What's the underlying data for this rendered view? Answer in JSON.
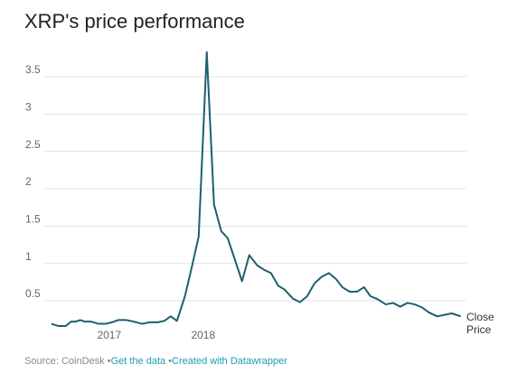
{
  "chart_data": {
    "type": "line",
    "title": "XRP's price performance",
    "x": [
      2016.385,
      2016.462,
      2016.538,
      2016.596,
      2016.644,
      2016.692,
      2016.74,
      2016.808,
      2016.885,
      2016.962,
      2017.029,
      2017.096,
      2017.183,
      2017.26,
      2017.346,
      2017.433,
      2017.519,
      2017.587,
      2017.654,
      2017.721,
      2017.808,
      2017.875,
      2017.952,
      2018.038,
      2018.115,
      2018.192,
      2018.26,
      2018.337,
      2018.413,
      2018.49,
      2018.577,
      2018.654,
      2018.721,
      2018.798,
      2018.865,
      2018.952,
      2019.029,
      2019.106,
      2019.183,
      2019.26,
      2019.337,
      2019.413,
      2019.481,
      2019.558,
      2019.635,
      2019.712,
      2019.779,
      2019.856,
      2019.942,
      2020.019,
      2020.096,
      2020.173,
      2020.25,
      2020.327,
      2020.404,
      2020.49,
      2020.567,
      2020.644,
      2020.74
    ],
    "series": [
      {
        "name": "Close Price",
        "color": "#1f5f6f",
        "values": [
          0.19,
          0.16,
          0.16,
          0.22,
          0.22,
          0.24,
          0.22,
          0.22,
          0.19,
          0.19,
          0.21,
          0.24,
          0.24,
          0.22,
          0.19,
          0.21,
          0.21,
          0.23,
          0.29,
          0.23,
          0.57,
          0.93,
          1.36,
          3.83,
          1.79,
          1.43,
          1.34,
          1.05,
          0.76,
          1.11,
          0.97,
          0.91,
          0.87,
          0.7,
          0.65,
          0.53,
          0.48,
          0.56,
          0.73,
          0.82,
          0.87,
          0.79,
          0.68,
          0.62,
          0.62,
          0.68,
          0.56,
          0.52,
          0.45,
          0.47,
          0.42,
          0.47,
          0.45,
          0.41,
          0.34,
          0.29,
          0.31,
          0.33,
          0.29
        ]
      }
    ],
    "xlim": [
      2016.3,
      2020.8
    ],
    "xticks": [
      2017,
      2018
    ],
    "ylim": [
      0.1,
      3.9
    ],
    "yticks": [
      0.5,
      1,
      1.5,
      2,
      2.5,
      3,
      3.5
    ],
    "grid": true,
    "footer": {
      "source": "Source: CoinDesk",
      "links": [
        "Get the data",
        "Created with Datawrapper"
      ]
    }
  }
}
